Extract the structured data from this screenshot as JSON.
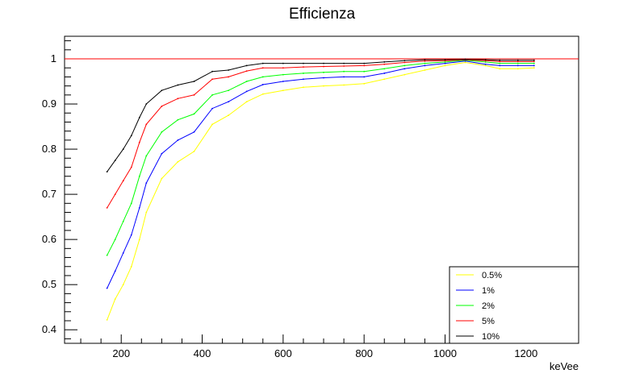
{
  "chart_data": {
    "type": "line",
    "title": "Efficienza",
    "xlabel": "keVee",
    "ylabel": "",
    "xlim": [
      60,
      1330
    ],
    "ylim": [
      0.37,
      1.05
    ],
    "xticks": [
      200,
      400,
      600,
      800,
      1000,
      1200
    ],
    "xtick_labels": [
      "200",
      "400",
      "600",
      "800",
      "1000",
      "1200"
    ],
    "yticks": [
      0.4,
      0.5,
      0.6,
      0.7,
      0.8,
      0.9,
      1
    ],
    "ytick_labels": [
      "0.4",
      "0.5",
      "0.6",
      "0.7",
      "0.8",
      "0.9",
      "1"
    ],
    "grid": false,
    "legend_position": "bottom-right",
    "reference_line": {
      "y": 1,
      "color": "#ff0000"
    },
    "x": [
      165,
      185,
      205,
      225,
      245,
      262,
      300,
      340,
      380,
      425,
      465,
      510,
      550,
      600,
      650,
      700,
      750,
      800,
      850,
      900,
      950,
      1000,
      1050,
      1100,
      1135,
      1180,
      1220
    ],
    "series": [
      {
        "name": "0.5%",
        "color": "#ffff00",
        "values": [
          0.422,
          0.468,
          0.5,
          0.54,
          0.6,
          0.66,
          0.735,
          0.772,
          0.795,
          0.855,
          0.875,
          0.905,
          0.922,
          0.93,
          0.937,
          0.94,
          0.942,
          0.945,
          0.955,
          0.965,
          0.975,
          0.985,
          0.992,
          0.985,
          0.978,
          0.978,
          0.98
        ]
      },
      {
        "name": "1%",
        "color": "#0000ff",
        "values": [
          0.492,
          0.53,
          0.57,
          0.61,
          0.67,
          0.725,
          0.79,
          0.82,
          0.838,
          0.89,
          0.905,
          0.928,
          0.943,
          0.95,
          0.955,
          0.958,
          0.96,
          0.96,
          0.968,
          0.978,
          0.985,
          0.99,
          0.995,
          0.988,
          0.985,
          0.985,
          0.985
        ]
      },
      {
        "name": "2%",
        "color": "#00ff00",
        "values": [
          0.565,
          0.6,
          0.64,
          0.68,
          0.74,
          0.785,
          0.838,
          0.865,
          0.878,
          0.92,
          0.93,
          0.95,
          0.96,
          0.965,
          0.968,
          0.97,
          0.972,
          0.972,
          0.978,
          0.985,
          0.99,
          0.993,
          0.997,
          0.993,
          0.99,
          0.99,
          0.99
        ]
      },
      {
        "name": "5%",
        "color": "#ff0000",
        "values": [
          0.67,
          0.7,
          0.73,
          0.76,
          0.815,
          0.855,
          0.895,
          0.912,
          0.92,
          0.955,
          0.96,
          0.973,
          0.98,
          0.98,
          0.982,
          0.983,
          0.984,
          0.985,
          0.988,
          0.992,
          0.995,
          0.996,
          0.998,
          0.996,
          0.994,
          0.994,
          0.994
        ]
      },
      {
        "name": "10%",
        "color": "#000000",
        "values": [
          0.75,
          0.775,
          0.8,
          0.83,
          0.87,
          0.9,
          0.93,
          0.942,
          0.95,
          0.972,
          0.975,
          0.985,
          0.99,
          0.99,
          0.99,
          0.99,
          0.99,
          0.99,
          0.993,
          0.996,
          0.998,
          0.998,
          0.999,
          0.998,
          0.997,
          0.997,
          0.997
        ]
      }
    ]
  }
}
